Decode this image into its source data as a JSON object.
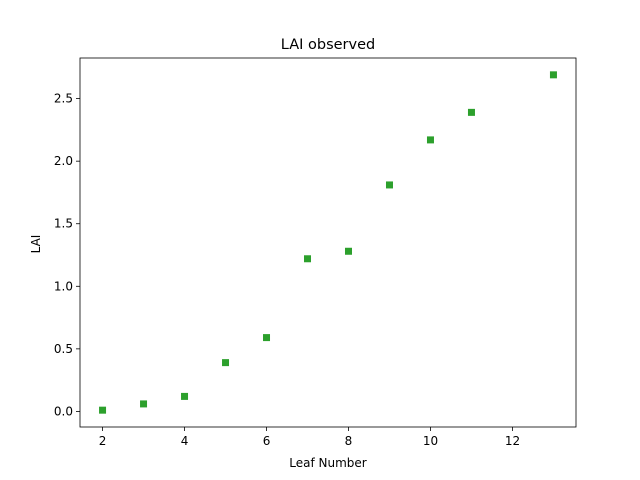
{
  "chart_data": {
    "type": "scatter",
    "title": "LAI observed",
    "xlabel": "Leaf Number",
    "ylabel": "LAI",
    "xlim": [
      1.45,
      13.55
    ],
    "ylim": [
      -0.1245,
      2.8245
    ],
    "xticks": [
      2,
      4,
      6,
      8,
      10,
      12
    ],
    "yticks": [
      0.0,
      0.5,
      1.0,
      1.5,
      2.0,
      2.5
    ],
    "xtick_labels": [
      "2",
      "4",
      "6",
      "8",
      "10",
      "12"
    ],
    "ytick_labels": [
      "0.0",
      "0.5",
      "1.0",
      "1.5",
      "2.0",
      "2.5"
    ],
    "grid": false,
    "marker": "square",
    "color": "#2ca02c",
    "series": [
      {
        "x": [
          2,
          3,
          4,
          5,
          6,
          7,
          8,
          9,
          10,
          11,
          13
        ],
        "y": [
          0.01,
          0.06,
          0.12,
          0.39,
          0.59,
          1.22,
          1.28,
          1.81,
          2.17,
          2.39,
          2.69
        ]
      }
    ]
  }
}
